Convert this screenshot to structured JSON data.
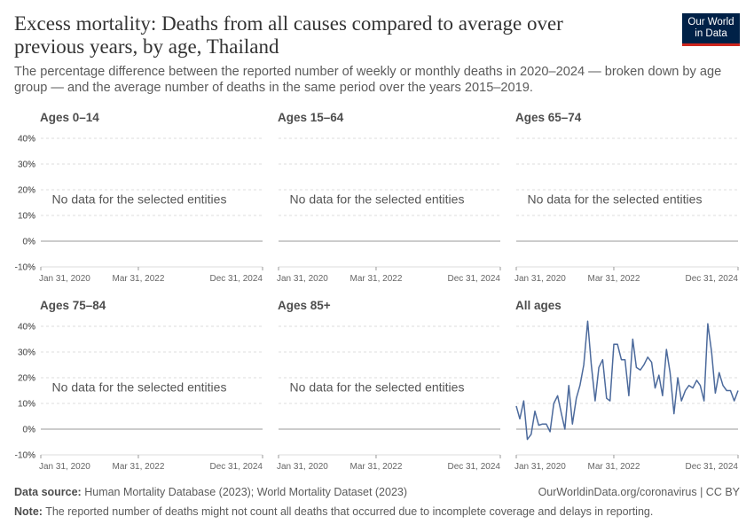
{
  "header": {
    "title": "Excess mortality: Deaths from all causes compared to average over previous years, by age, Thailand",
    "subtitle": "The percentage difference between the reported number of weekly or monthly deaths in 2020–2024 — broken down by age group — and the average number of deaths in the same period over the years 2015–2019.",
    "logo_line1": "Our World",
    "logo_line2": "in Data"
  },
  "footer": {
    "source_label": "Data source:",
    "source_text": "Human Mortality Database (2023); World Mortality Dataset (2023)",
    "link_text": "OurWorldinData.org/coronavirus",
    "license": " | CC BY",
    "note_label": "Note:",
    "note_text": "The reported number of deaths might not count all deaths that occurred due to incomplete coverage and delays in reporting."
  },
  "colors": {
    "line": "#4c6a9c",
    "gridline": "#dddddd",
    "zero_line": "#9a9a9a",
    "axis_text": "#666666",
    "panel_title": "#4d4d4d"
  },
  "chart_data": {
    "type": "line",
    "layout": "small-multiples",
    "y_ticks": [
      "40%",
      "30%",
      "20%",
      "10%",
      "0%",
      "-10%"
    ],
    "y_tick_values": [
      40,
      30,
      20,
      10,
      0,
      -10
    ],
    "ylim": [
      -10,
      40
    ],
    "x_ticks": [
      "Jan 31, 2020",
      "Mar 31, 2022",
      "Dec 31, 2024"
    ],
    "x_tick_values": [
      "2020-01-31",
      "2022-03-31",
      "2024-12-31"
    ],
    "xlim": [
      "2020-01-31",
      "2024-12-31"
    ],
    "grid": true,
    "no_data_message": "No data for the selected entities",
    "panels": [
      {
        "title": "Ages 0–14",
        "has_data": false
      },
      {
        "title": "Ages 15–64",
        "has_data": false
      },
      {
        "title": "Ages 65–74",
        "has_data": false
      },
      {
        "title": "Ages 75–84",
        "has_data": false
      },
      {
        "title": "Ages 85+",
        "has_data": false
      },
      {
        "title": "All ages",
        "has_data": true,
        "series": [
          {
            "x": [
              "2020-01-31",
              "2020-02-29",
              "2020-03-31",
              "2020-04-30",
              "2020-05-31",
              "2020-06-30",
              "2020-07-31",
              "2020-08-31",
              "2020-09-30",
              "2020-10-31",
              "2020-11-30",
              "2020-12-31",
              "2021-01-31",
              "2021-02-28",
              "2021-03-31",
              "2021-04-30",
              "2021-05-31",
              "2021-06-30",
              "2021-07-31",
              "2021-08-31",
              "2021-09-30",
              "2021-10-31",
              "2021-11-30",
              "2021-12-31",
              "2022-01-31",
              "2022-02-28",
              "2022-03-31",
              "2022-04-30",
              "2022-05-31",
              "2022-06-30",
              "2022-07-31",
              "2022-08-31",
              "2022-09-30",
              "2022-10-31",
              "2022-11-30",
              "2022-12-31",
              "2023-01-31",
              "2023-02-28",
              "2023-03-31",
              "2023-04-30",
              "2023-05-31",
              "2023-06-30",
              "2023-07-31",
              "2023-08-31",
              "2023-09-30",
              "2023-10-31",
              "2023-11-30",
              "2023-12-31",
              "2024-01-31",
              "2024-02-29",
              "2024-03-31",
              "2024-04-30",
              "2024-05-31",
              "2024-06-30",
              "2024-07-31",
              "2024-08-31",
              "2024-09-30",
              "2024-10-31",
              "2024-11-30",
              "2024-12-31"
            ],
            "values": [
              9,
              4,
              11,
              -4,
              -2,
              7,
              1.5,
              2,
              2,
              -1,
              10,
              13,
              6,
              0,
              17,
              2,
              12,
              17,
              25,
              42,
              25,
              11,
              24,
              27,
              12,
              11,
              33,
              33,
              27,
              27,
              13,
              35,
              24,
              23,
              25,
              28,
              26,
              16,
              21,
              13,
              31,
              22,
              6,
              20,
              11,
              15,
              17,
              16,
              19,
              17,
              11,
              41,
              30,
              14,
              22,
              17,
              15,
              15,
              11,
              15
            ]
          }
        ]
      }
    ]
  }
}
